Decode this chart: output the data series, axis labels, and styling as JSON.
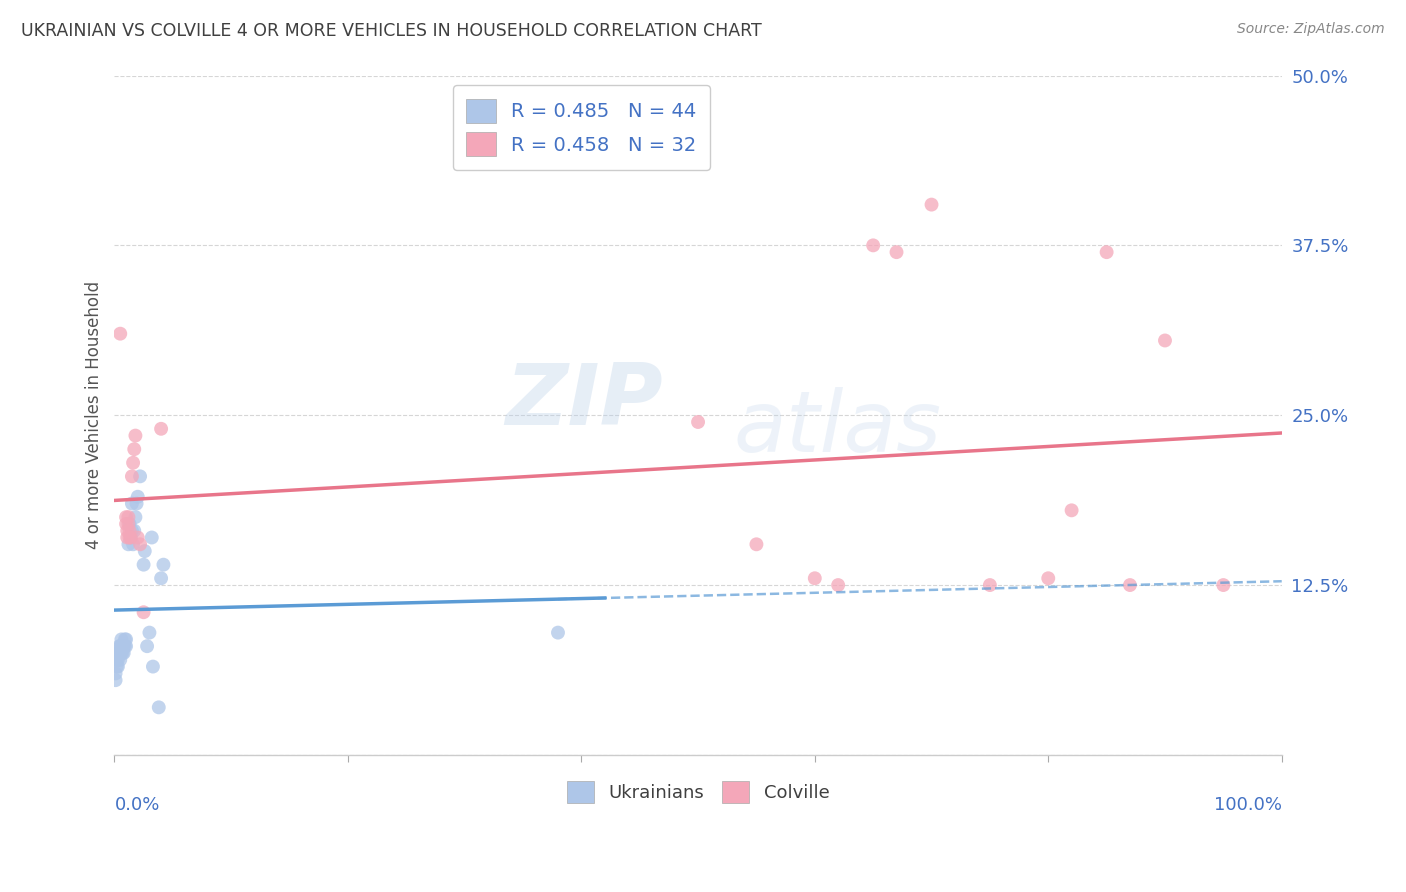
{
  "title": "UKRAINIAN VS COLVILLE 4 OR MORE VEHICLES IN HOUSEHOLD CORRELATION CHART",
  "source": "Source: ZipAtlas.com",
  "ylabel": "4 or more Vehicles in Household",
  "watermark": "ZIPatlas",
  "legend_entries": [
    {
      "label": "R = 0.485   N = 44",
      "color": "#aec6e8"
    },
    {
      "label": "R = 0.458   N = 32",
      "color": "#f4a7b9"
    }
  ],
  "legend_bottom": [
    {
      "label": "Ukrainians",
      "color": "#aec6e8"
    },
    {
      "label": "Colville",
      "color": "#f4a7b9"
    }
  ],
  "ytick_labels": [
    "",
    "12.5%",
    "25.0%",
    "37.5%",
    "50.0%"
  ],
  "ytick_values": [
    0,
    0.125,
    0.25,
    0.375,
    0.5
  ],
  "xlim": [
    0,
    1.0
  ],
  "ylim": [
    0,
    0.5
  ],
  "ukrainian_scatter": [
    [
      0.001,
      0.055
    ],
    [
      0.001,
      0.06
    ],
    [
      0.002,
      0.065
    ],
    [
      0.002,
      0.07
    ],
    [
      0.003,
      0.07
    ],
    [
      0.003,
      0.075
    ],
    [
      0.003,
      0.065
    ],
    [
      0.004,
      0.075
    ],
    [
      0.004,
      0.08
    ],
    [
      0.005,
      0.07
    ],
    [
      0.005,
      0.075
    ],
    [
      0.005,
      0.08
    ],
    [
      0.006,
      0.075
    ],
    [
      0.006,
      0.08
    ],
    [
      0.006,
      0.085
    ],
    [
      0.007,
      0.075
    ],
    [
      0.007,
      0.08
    ],
    [
      0.008,
      0.075
    ],
    [
      0.008,
      0.08
    ],
    [
      0.009,
      0.08
    ],
    [
      0.009,
      0.085
    ],
    [
      0.01,
      0.08
    ],
    [
      0.01,
      0.085
    ],
    [
      0.012,
      0.155
    ],
    [
      0.013,
      0.17
    ],
    [
      0.014,
      0.16
    ],
    [
      0.015,
      0.165
    ],
    [
      0.015,
      0.185
    ],
    [
      0.016,
      0.155
    ],
    [
      0.017,
      0.165
    ],
    [
      0.018,
      0.175
    ],
    [
      0.019,
      0.185
    ],
    [
      0.02,
      0.19
    ],
    [
      0.022,
      0.205
    ],
    [
      0.025,
      0.14
    ],
    [
      0.026,
      0.15
    ],
    [
      0.028,
      0.08
    ],
    [
      0.03,
      0.09
    ],
    [
      0.032,
      0.16
    ],
    [
      0.033,
      0.065
    ],
    [
      0.038,
      0.035
    ],
    [
      0.04,
      0.13
    ],
    [
      0.042,
      0.14
    ],
    [
      0.38,
      0.09
    ]
  ],
  "colville_scatter": [
    [
      0.005,
      0.31
    ],
    [
      0.01,
      0.17
    ],
    [
      0.01,
      0.175
    ],
    [
      0.011,
      0.16
    ],
    [
      0.011,
      0.165
    ],
    [
      0.012,
      0.17
    ],
    [
      0.012,
      0.175
    ],
    [
      0.013,
      0.16
    ],
    [
      0.013,
      0.165
    ],
    [
      0.014,
      0.16
    ],
    [
      0.015,
      0.205
    ],
    [
      0.016,
      0.215
    ],
    [
      0.017,
      0.225
    ],
    [
      0.018,
      0.235
    ],
    [
      0.02,
      0.16
    ],
    [
      0.022,
      0.155
    ],
    [
      0.025,
      0.105
    ],
    [
      0.04,
      0.24
    ],
    [
      0.5,
      0.245
    ],
    [
      0.55,
      0.155
    ],
    [
      0.6,
      0.13
    ],
    [
      0.62,
      0.125
    ],
    [
      0.65,
      0.375
    ],
    [
      0.67,
      0.37
    ],
    [
      0.7,
      0.405
    ],
    [
      0.75,
      0.125
    ],
    [
      0.8,
      0.13
    ],
    [
      0.82,
      0.18
    ],
    [
      0.85,
      0.37
    ],
    [
      0.87,
      0.125
    ],
    [
      0.9,
      0.305
    ],
    [
      0.95,
      0.125
    ]
  ],
  "ukrainian_line_color": "#5b9bd5",
  "colville_line_color": "#e8758a",
  "ukrainian_dot_color": "#aec6e8",
  "colville_dot_color": "#f4a7b9",
  "scatter_size": 100,
  "scatter_alpha": 0.75,
  "background_color": "#ffffff",
  "grid_color": "#cccccc",
  "title_color": "#404040",
  "source_color": "#888888",
  "axis_label_color": "#4472c4",
  "legend_text_color": "#4472c4"
}
